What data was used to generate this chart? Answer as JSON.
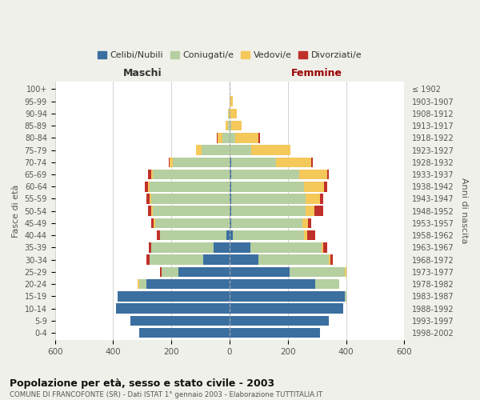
{
  "age_groups": [
    "100+",
    "95-99",
    "90-94",
    "85-89",
    "80-84",
    "75-79",
    "70-74",
    "65-69",
    "60-64",
    "55-59",
    "50-54",
    "45-49",
    "40-44",
    "35-39",
    "30-34",
    "25-29",
    "20-24",
    "15-19",
    "10-14",
    "5-9",
    "0-4"
  ],
  "birth_years": [
    "≤ 1902",
    "1903-1907",
    "1908-1912",
    "1913-1917",
    "1918-1922",
    "1923-1927",
    "1928-1932",
    "1933-1937",
    "1938-1942",
    "1943-1947",
    "1948-1952",
    "1953-1957",
    "1958-1962",
    "1963-1967",
    "1968-1972",
    "1973-1977",
    "1978-1982",
    "1983-1987",
    "1988-1992",
    "1993-1997",
    "1998-2002"
  ],
  "maschi": {
    "celibi": [
      0,
      0,
      0,
      0,
      0,
      0,
      0,
      0,
      0,
      0,
      0,
      0,
      10,
      55,
      90,
      175,
      285,
      385,
      390,
      340,
      310
    ],
    "coniugati": [
      0,
      0,
      2,
      5,
      25,
      95,
      195,
      265,
      275,
      270,
      265,
      255,
      230,
      215,
      185,
      60,
      25,
      0,
      0,
      0,
      0
    ],
    "vedovi": [
      0,
      0,
      5,
      10,
      15,
      20,
      10,
      5,
      5,
      5,
      5,
      5,
      0,
      0,
      0,
      0,
      5,
      0,
      0,
      0,
      0
    ],
    "divorziati": [
      0,
      0,
      0,
      0,
      5,
      0,
      5,
      10,
      10,
      10,
      10,
      10,
      10,
      8,
      10,
      5,
      0,
      0,
      0,
      0,
      0
    ]
  },
  "femmine": {
    "nubili": [
      0,
      0,
      0,
      0,
      0,
      0,
      5,
      5,
      5,
      5,
      5,
      5,
      10,
      70,
      100,
      205,
      295,
      395,
      390,
      340,
      310
    ],
    "coniugate": [
      0,
      0,
      0,
      5,
      20,
      75,
      155,
      235,
      250,
      255,
      255,
      245,
      245,
      245,
      240,
      190,
      80,
      5,
      0,
      0,
      0
    ],
    "vedove": [
      0,
      10,
      25,
      35,
      80,
      135,
      120,
      95,
      70,
      50,
      30,
      20,
      10,
      5,
      5,
      5,
      0,
      0,
      0,
      0,
      0
    ],
    "divorziate": [
      0,
      0,
      0,
      0,
      5,
      0,
      5,
      5,
      10,
      10,
      30,
      10,
      30,
      15,
      10,
      0,
      0,
      0,
      0,
      0,
      0
    ]
  },
  "colors": {
    "celibi": "#3b6fa0",
    "coniugati": "#b5cfa0",
    "vedovi": "#f5c85a",
    "divorziati": "#c0302a"
  },
  "xlim": 600,
  "title": "Popolazione per età, sesso e stato civile - 2003",
  "subtitle": "COMUNE DI FRANCOFONTE (SR) - Dati ISTAT 1° gennaio 2003 - Elaborazione TUTTITALIA.IT",
  "ylabel_left": "Fasce di età",
  "ylabel_right": "Anni di nascita",
  "xlabel_maschi": "Maschi",
  "xlabel_femmine": "Femmine",
  "legend_labels": [
    "Celibi/Nubili",
    "Coniugati/e",
    "Vedovi/e",
    "Divorziati/e"
  ],
  "bg_color": "#f0f0ea",
  "plot_bg_color": "#ffffff"
}
